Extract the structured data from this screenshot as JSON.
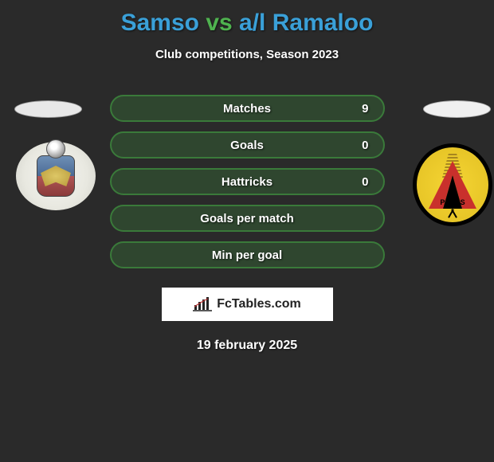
{
  "title_parts": {
    "p1": "Samso",
    "vs": "vs",
    "p2": "a/l Ramaloo"
  },
  "title_colors": {
    "p1": "#3aa0d8",
    "vs": "#4fb24f",
    "p2": "#3aa0d8"
  },
  "subtitle": "Club competitions, Season 2023",
  "stats": [
    {
      "label": "Matches",
      "value": "9",
      "border": "#3a7a3a",
      "bg": "rgba(58,122,58,0.35)"
    },
    {
      "label": "Goals",
      "value": "0",
      "border": "#3a7a3a",
      "bg": "rgba(58,122,58,0.35)"
    },
    {
      "label": "Hattricks",
      "value": "0",
      "border": "#3a7a3a",
      "bg": "rgba(58,122,58,0.35)"
    },
    {
      "label": "Goals per match",
      "value": "",
      "border": "#3a7a3a",
      "bg": "rgba(58,122,58,0.35)"
    },
    {
      "label": "Min per goal",
      "value": "",
      "border": "#3a7a3a",
      "bg": "rgba(58,122,58,0.35)"
    }
  ],
  "brand": "FcTables.com",
  "date": "19 february 2025",
  "crest_right_text": "P.B.N.S"
}
